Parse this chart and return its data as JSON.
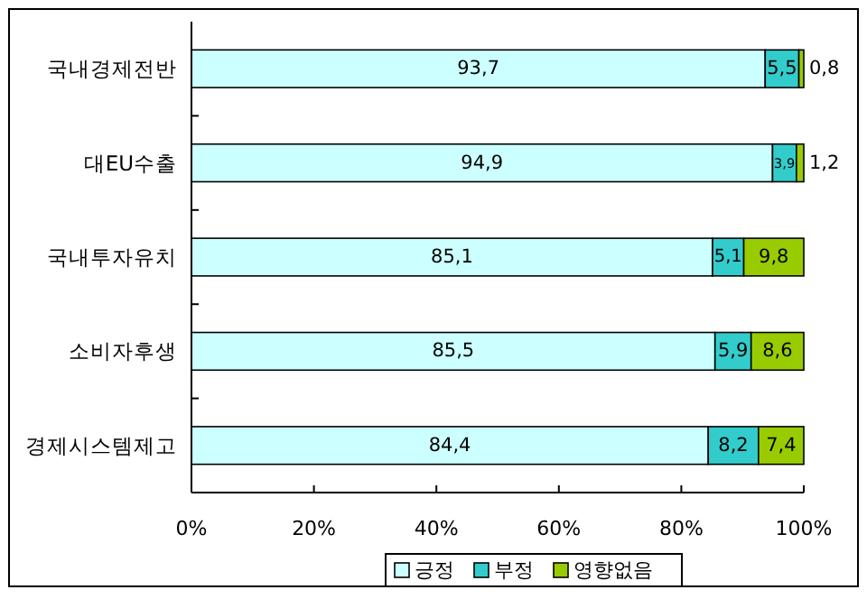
{
  "chart_data": {
    "type": "bar",
    "orientation": "horizontal",
    "stacked": true,
    "categories": [
      "국내경제전반",
      "대EU수출",
      "국내투자유치",
      "소비자후생",
      "경제시스템제고"
    ],
    "series": [
      {
        "name": "긍정",
        "color": "#ccffff",
        "values": [
          93.7,
          94.9,
          85.1,
          85.5,
          84.4
        ],
        "value_labels": [
          "93,7",
          "94,9",
          "85,1",
          "85,5",
          "84,4"
        ]
      },
      {
        "name": "부정",
        "color": "#33cccc",
        "values": [
          5.5,
          3.9,
          5.1,
          5.9,
          8.2
        ],
        "value_labels": [
          "5,5",
          "3,9",
          "5,1",
          "5,9",
          "8,2"
        ]
      },
      {
        "name": "영향없음",
        "color": "#99cc00",
        "values": [
          0.8,
          1.2,
          9.8,
          8.6,
          7.4
        ],
        "value_labels": [
          "0,8",
          "1,2",
          "9,8",
          "8,6",
          "7,4"
        ]
      }
    ],
    "xlim": [
      0,
      100
    ],
    "xticks": [
      {
        "value": 0,
        "label": "0%"
      },
      {
        "value": 20,
        "label": "20%"
      },
      {
        "value": 40,
        "label": "40%"
      },
      {
        "value": 60,
        "label": "60%"
      },
      {
        "value": 80,
        "label": "80%"
      },
      {
        "value": 100,
        "label": "100%"
      }
    ],
    "legend": "bottom"
  }
}
